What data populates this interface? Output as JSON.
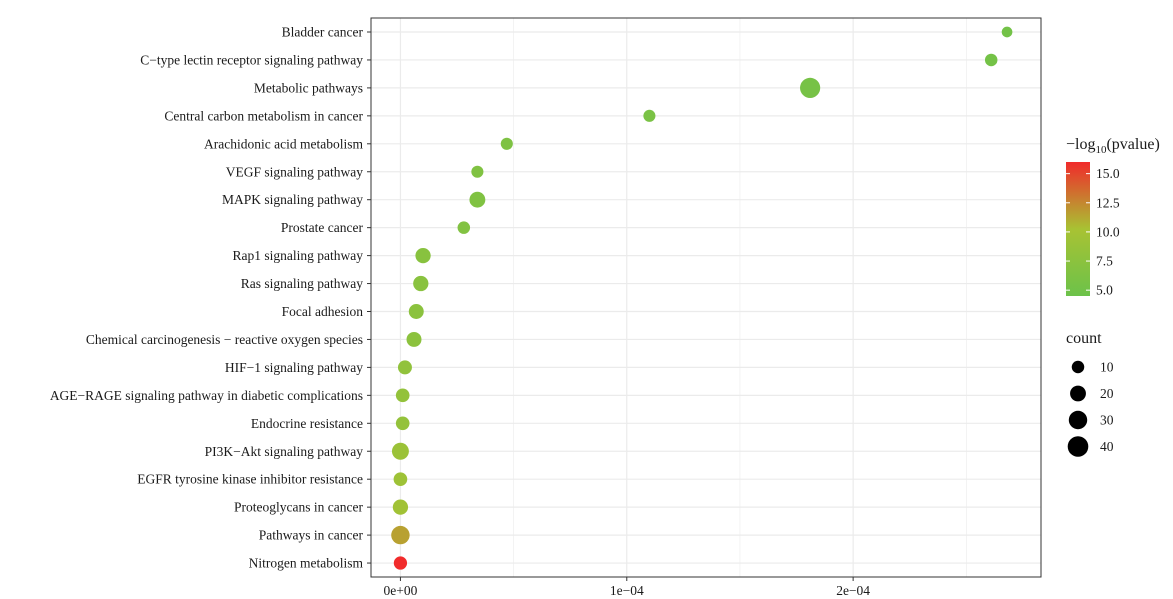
{
  "chart_data": {
    "type": "scatter",
    "title": "",
    "xlabel": "",
    "ylabel": "",
    "xlim": [
      -1.3e-05,
      0.000283
    ],
    "x_ticks": [
      0,
      0.0001,
      0.0002
    ],
    "x_tick_labels": [
      "0e+00",
      "1e−04",
      "2e−04"
    ],
    "grid": true,
    "categories": [
      "Bladder cancer",
      "C−type lectin receptor signaling pathway",
      "Metabolic pathways",
      "Central carbon metabolism in cancer",
      "Arachidonic acid metabolism",
      "VEGF signaling pathway",
      "MAPK signaling pathway",
      "Prostate cancer",
      "Rap1 signaling pathway",
      "Ras signaling pathway",
      "Focal adhesion",
      "Chemical carcinogenesis − reactive oxygen species",
      "HIF−1 signaling pathway",
      "AGE−RAGE signaling pathway in diabetic complications",
      "Endocrine resistance",
      "PI3K−Akt signaling pathway",
      "EGFR tyrosine kinase inhibitor resistance",
      "Proteoglycans in cancer",
      "Pathways in cancer",
      "Nitrogen metabolism"
    ],
    "points": [
      {
        "y": "Bladder cancer",
        "x": 0.000268,
        "count": 6,
        "neglog10p": 5.2
      },
      {
        "y": "C−type lectin receptor signaling pathway",
        "x": 0.000261,
        "count": 10,
        "neglog10p": 5.3
      },
      {
        "y": "Metabolic pathways",
        "x": 0.000181,
        "count": 38,
        "neglog10p": 5.6
      },
      {
        "y": "Central carbon metabolism in cancer",
        "x": 0.00011,
        "count": 9,
        "neglog10p": 5.8
      },
      {
        "y": "Arachidonic acid metabolism",
        "x": 4.7e-05,
        "count": 9,
        "neglog10p": 6.2
      },
      {
        "y": "VEGF signaling pathway",
        "x": 3.4e-05,
        "count": 9,
        "neglog10p": 6.4
      },
      {
        "y": "MAPK signaling pathway",
        "x": 3.4e-05,
        "count": 20,
        "neglog10p": 6.4
      },
      {
        "y": "Prostate cancer",
        "x": 2.8e-05,
        "count": 10,
        "neglog10p": 6.6
      },
      {
        "y": "Rap1 signaling pathway",
        "x": 1e-05,
        "count": 18,
        "neglog10p": 7.2
      },
      {
        "y": "Ras signaling pathway",
        "x": 9e-06,
        "count": 18,
        "neglog10p": 7.3
      },
      {
        "y": "Focal adhesion",
        "x": 7e-06,
        "count": 17,
        "neglog10p": 7.5
      },
      {
        "y": "Chemical carcinogenesis − reactive oxygen species",
        "x": 6e-06,
        "count": 17,
        "neglog10p": 7.6
      },
      {
        "y": "HIF−1 signaling pathway",
        "x": 2e-06,
        "count": 14,
        "neglog10p": 8.0
      },
      {
        "y": "AGE−RAGE signaling pathway in diabetic complications",
        "x": 1e-06,
        "count": 13,
        "neglog10p": 8.2
      },
      {
        "y": "Endocrine resistance",
        "x": 1e-06,
        "count": 13,
        "neglog10p": 8.3
      },
      {
        "y": "PI3K−Akt signaling pathway",
        "x": 0.0,
        "count": 24,
        "neglog10p": 9.0
      },
      {
        "y": "EGFR tyrosine kinase inhibitor resistance",
        "x": 0.0,
        "count": 13,
        "neglog10p": 9.3
      },
      {
        "y": "Proteoglycans in cancer",
        "x": 0.0,
        "count": 18,
        "neglog10p": 9.6
      },
      {
        "y": "Pathways in cancer",
        "x": 0.0,
        "count": 30,
        "neglog10p": 11.5
      },
      {
        "y": "Nitrogen metabolism",
        "x": 0.0,
        "count": 12,
        "neglog10p": 16.0
      }
    ],
    "legend_position": "right",
    "color_legend": {
      "title_prefix": "−log",
      "title_sub": "10",
      "title_suffix": "(pvalue)",
      "range": [
        4.5,
        16.0
      ],
      "ticks": [
        5.0,
        7.5,
        10.0,
        12.5,
        15.0
      ],
      "tick_labels": [
        "5.0",
        "7.5",
        "10.0",
        "12.5",
        "15.0"
      ],
      "color_low": "#6cc24a",
      "color_mid": "#a8c233",
      "color_high": "#f12b2b"
    },
    "size_legend": {
      "title": "count",
      "values": [
        10,
        20,
        30,
        40
      ],
      "labels": [
        "10",
        "20",
        "30",
        "40"
      ]
    }
  }
}
